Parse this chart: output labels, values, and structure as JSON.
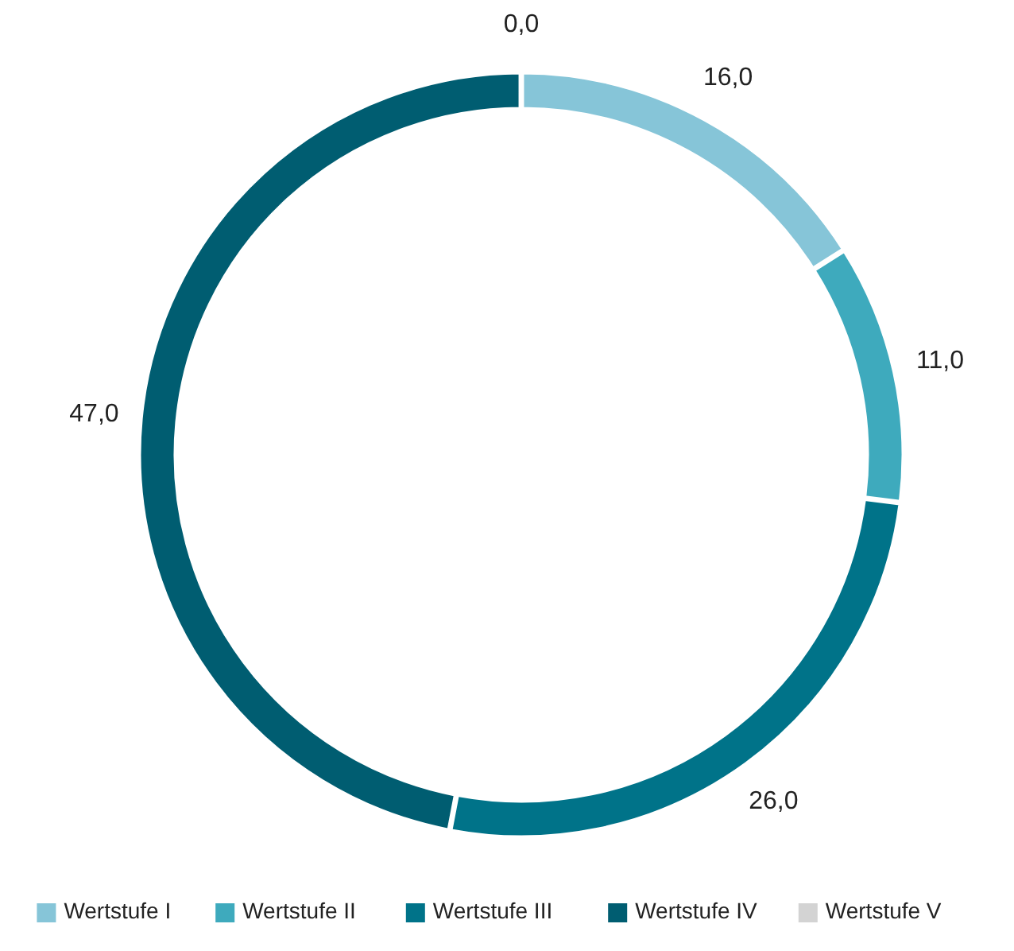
{
  "chart_data": {
    "type": "donut",
    "categories": [
      "Wertstufe I",
      "Wertstufe II",
      "Wertstufe III",
      "Wertstufe IV",
      "Wertstufe V"
    ],
    "values": [
      16,
      11,
      26,
      47,
      0
    ],
    "colors": [
      "#86c5d8",
      "#3eaabd",
      "#007389",
      "#005d71",
      "#d3d3d3"
    ],
    "value_labels": [
      "16,0",
      "11,0",
      "26,0",
      "47,0",
      "0,0"
    ],
    "legend": "bottom"
  }
}
